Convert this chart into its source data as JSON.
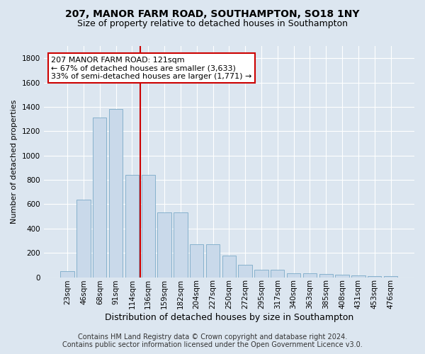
{
  "title": "207, MANOR FARM ROAD, SOUTHAMPTON, SO18 1NY",
  "subtitle": "Size of property relative to detached houses in Southampton",
  "xlabel": "Distribution of detached houses by size in Southampton",
  "ylabel": "Number of detached properties",
  "categories": [
    "23sqm",
    "46sqm",
    "68sqm",
    "91sqm",
    "114sqm",
    "136sqm",
    "159sqm",
    "182sqm",
    "204sqm",
    "227sqm",
    "250sqm",
    "272sqm",
    "295sqm",
    "317sqm",
    "340sqm",
    "363sqm",
    "385sqm",
    "408sqm",
    "431sqm",
    "453sqm",
    "476sqm"
  ],
  "values": [
    50,
    640,
    1310,
    1380,
    840,
    840,
    530,
    530,
    270,
    270,
    180,
    100,
    60,
    60,
    30,
    30,
    25,
    20,
    15,
    10,
    10
  ],
  "bar_color": "#c9d9ea",
  "bar_edge_color": "#7aaac8",
  "vline_x": 4.5,
  "vline_color": "#cc0000",
  "annotation_text": "207 MANOR FARM ROAD: 121sqm\n← 67% of detached houses are smaller (3,633)\n33% of semi-detached houses are larger (1,771) →",
  "annotation_box_color": "white",
  "annotation_box_edge_color": "#cc0000",
  "ylim": [
    0,
    1900
  ],
  "yticks": [
    0,
    200,
    400,
    600,
    800,
    1000,
    1200,
    1400,
    1600,
    1800
  ],
  "footer1": "Contains HM Land Registry data © Crown copyright and database right 2024.",
  "footer2": "Contains public sector information licensed under the Open Government Licence v3.0.",
  "background_color": "#dce6f0",
  "plot_background_color": "#dce6f0",
  "title_fontsize": 10,
  "subtitle_fontsize": 9,
  "xlabel_fontsize": 9,
  "ylabel_fontsize": 8,
  "tick_fontsize": 7.5,
  "footer_fontsize": 7,
  "annotation_fontsize": 8
}
